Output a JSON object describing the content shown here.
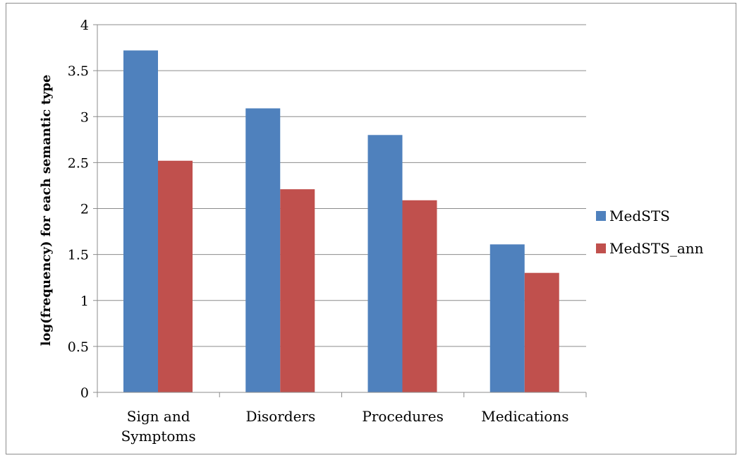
{
  "chart_data": {
    "type": "bar",
    "title": "",
    "xlabel": "",
    "ylabel": "log(frequency) for each semantic type",
    "ylim": [
      0,
      4
    ],
    "yticks": [
      "0",
      "0.5",
      "1",
      "1.5",
      "2",
      "2.5",
      "3",
      "3.5",
      "4"
    ],
    "categories": [
      [
        "Sign and",
        "Symptoms"
      ],
      [
        "Disorders"
      ],
      [
        "Procedures"
      ],
      [
        "Medications"
      ]
    ],
    "series": [
      {
        "name": "MedSTS",
        "color": "#4f81bd",
        "values": [
          3.72,
          3.09,
          2.8,
          1.61
        ]
      },
      {
        "name": "MedSTS_ann",
        "color": "#c0504d",
        "values": [
          2.52,
          2.21,
          2.09,
          1.3
        ]
      }
    ],
    "grid": true,
    "legend": "right"
  }
}
